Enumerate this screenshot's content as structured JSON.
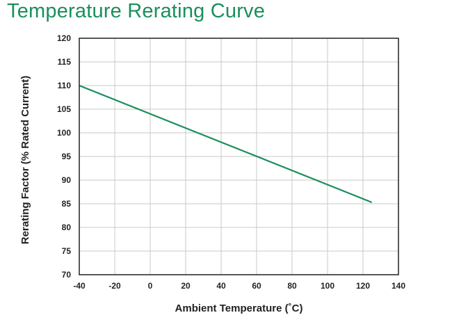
{
  "title": "Temperature Rerating Curve",
  "chart_data": {
    "type": "line",
    "xlabel": "Ambient Temperature (˚C)",
    "ylabel": "Rerating Factor (% Rated Current)",
    "xlim": [
      -40,
      140
    ],
    "ylim": [
      70,
      120
    ],
    "x_ticks": [
      -40,
      -20,
      0,
      20,
      40,
      60,
      80,
      100,
      120,
      140
    ],
    "y_ticks": [
      70,
      75,
      80,
      85,
      90,
      95,
      100,
      105,
      110,
      115,
      120
    ],
    "grid": true,
    "series": [
      {
        "x": [
          -40,
          125
        ],
        "y": [
          110,
          85.3
        ]
      }
    ],
    "colors": {
      "line": "#1a8f5c",
      "grid": "#c8c8c8",
      "frame": "#231f20",
      "title": "#1a8f5c"
    }
  }
}
